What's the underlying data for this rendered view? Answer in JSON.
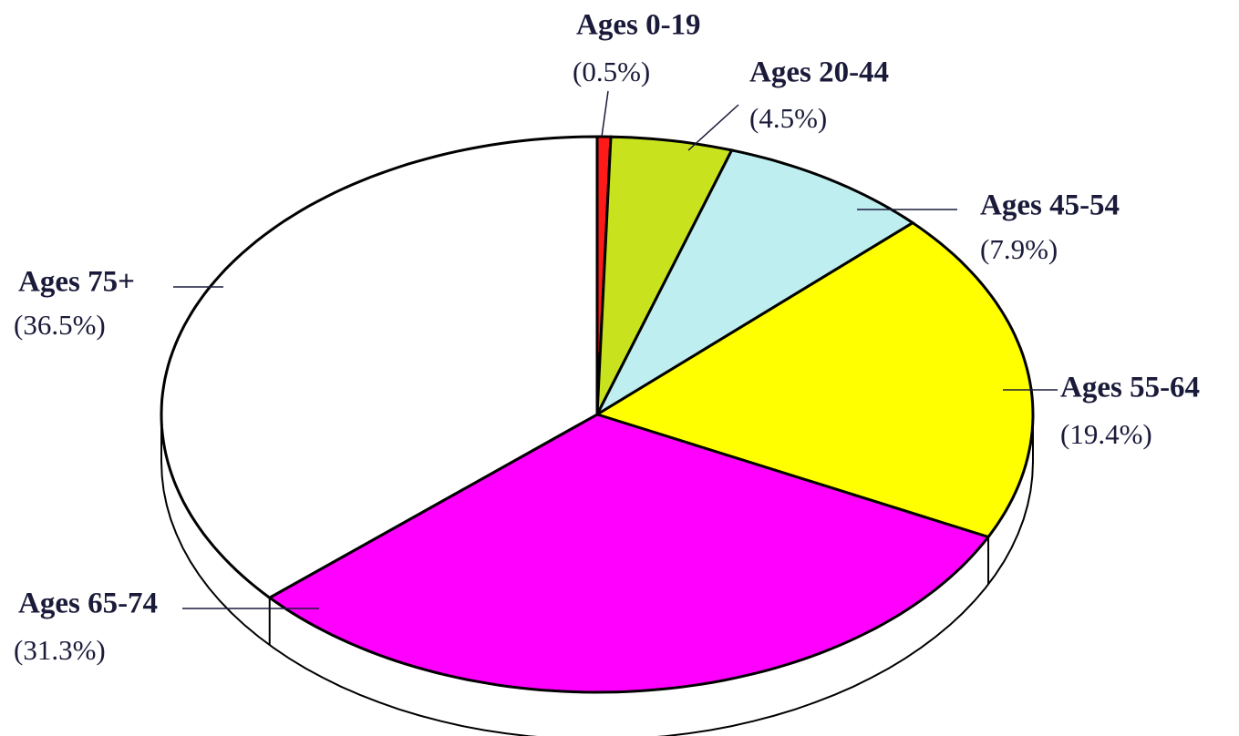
{
  "chart_data": {
    "type": "pie",
    "categories": [
      "Ages 0-19",
      "Ages 20-44",
      "Ages 45-54",
      "Ages 55-64",
      "Ages 65-74",
      "Ages 75+"
    ],
    "values": [
      0.5,
      4.5,
      7.9,
      19.4,
      31.3,
      36.5
    ],
    "value_labels": [
      "(0.5%)",
      "(4.5%)",
      "(7.9%)",
      "(19.4%)",
      "(31.3%)",
      "(36.5%)"
    ],
    "colors": [
      "#ff1a1a",
      "#c8e21e",
      "#bfeef0",
      "#ffff00",
      "#ff00ff",
      "#ffffff"
    ]
  }
}
